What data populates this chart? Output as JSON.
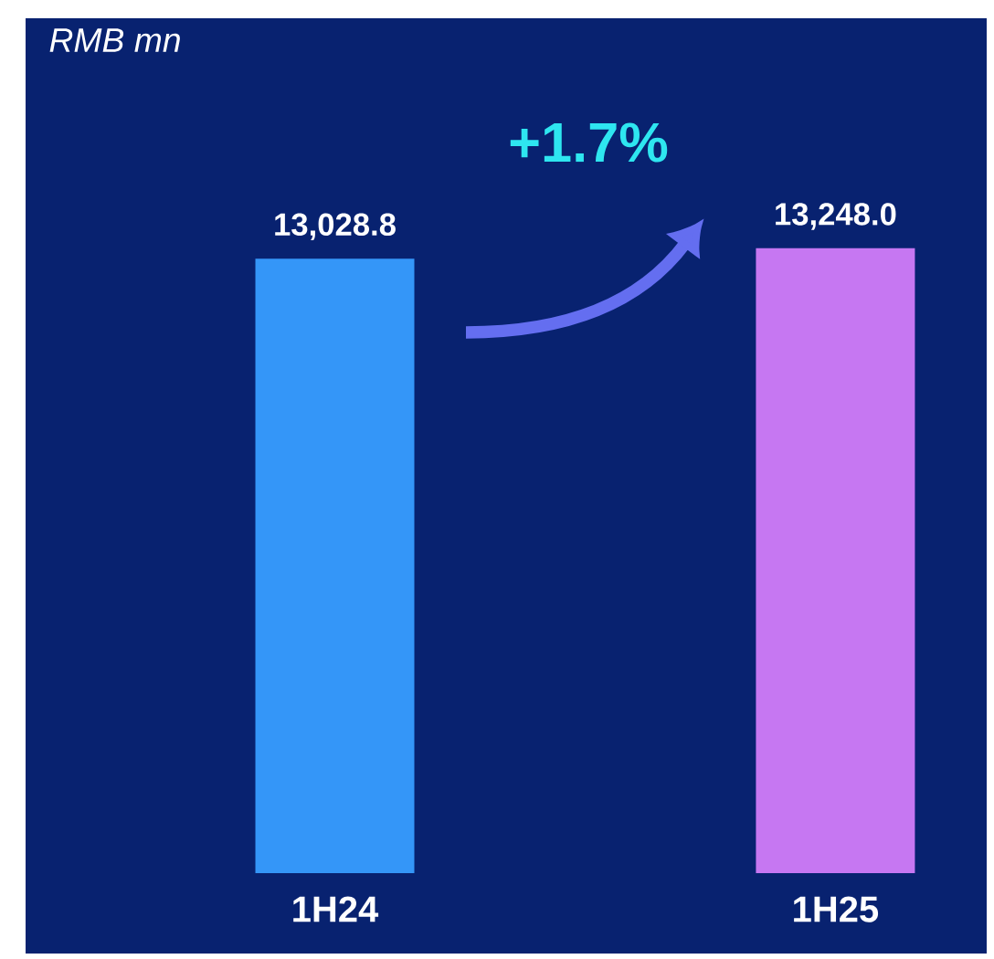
{
  "chart_data": {
    "type": "bar",
    "categories": [
      "1H24",
      "1H25"
    ],
    "values": [
      13028.8,
      13248.0
    ],
    "value_labels": [
      "13,028.8",
      "13,248.0"
    ],
    "colors": [
      "#3496f8",
      "#c677f2"
    ],
    "tick_labels": "x",
    "annotations": [
      "RMB mn",
      "+1.7%"
    ]
  }
}
